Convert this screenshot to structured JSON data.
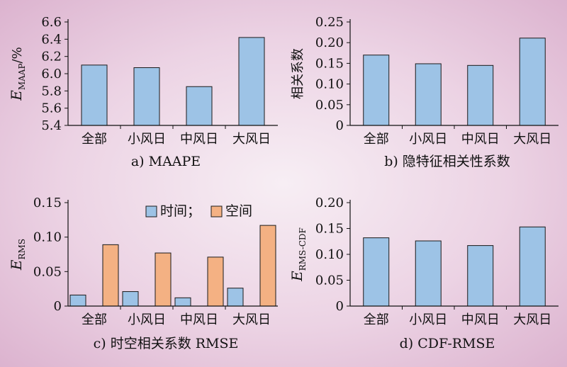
{
  "chart_data": [
    {
      "id": "a",
      "type": "bar",
      "caption": "a) MAAPE",
      "ylabel": {
        "symbol": "E",
        "sub": "MAAP",
        "suffix": "/%"
      },
      "categories": [
        "全部",
        "小风日",
        "中风日",
        "大风日"
      ],
      "ylim": [
        5.4,
        6.6
      ],
      "yticks": [
        "5.4",
        "5.6",
        "5.8",
        "6.0",
        "6.2",
        "6.4",
        "6.6"
      ],
      "series": [
        {
          "values": [
            6.1,
            6.07,
            5.85,
            6.42
          ],
          "color": "#9dc3e6"
        }
      ]
    },
    {
      "id": "b",
      "type": "bar",
      "caption": "b) 隐特征相关性系数",
      "ylabel": {
        "text": "相关系数"
      },
      "categories": [
        "全部",
        "小风日",
        "中风日",
        "大风日"
      ],
      "ylim": [
        0,
        0.25
      ],
      "yticks": [
        "0",
        "0.05",
        "0.10",
        "0.15",
        "0.20",
        "0.25"
      ],
      "series": [
        {
          "values": [
            0.17,
            0.149,
            0.145,
            0.211
          ],
          "color": "#9dc3e6"
        }
      ]
    },
    {
      "id": "c",
      "type": "bar",
      "caption": "c) 时空相关系数 RMSE",
      "ylabel": {
        "symbol": "E",
        "sub": "RMS",
        "suffix": ""
      },
      "categories": [
        "全部",
        "小风日",
        "中风日",
        "大风日"
      ],
      "ylim": [
        0,
        0.15
      ],
      "yticks": [
        "0",
        "0.05",
        "0.10",
        "0.15"
      ],
      "legend": {
        "position": "top-right",
        "separator": "；"
      },
      "series": [
        {
          "name": "时间",
          "values": [
            0.016,
            0.021,
            0.012,
            0.026
          ],
          "color": "#9dc3e6"
        },
        {
          "name": "空间",
          "values": [
            0.089,
            0.077,
            0.071,
            0.117
          ],
          "color": "#f4b183"
        }
      ]
    },
    {
      "id": "d",
      "type": "bar",
      "caption": "d) CDF-RMSE",
      "ylabel": {
        "symbol": "E",
        "sub": "RMS-CDF",
        "suffix": ""
      },
      "categories": [
        "全部",
        "小风日",
        "中风日",
        "大风日"
      ],
      "ylim": [
        0,
        0.2
      ],
      "yticks": [
        "0",
        "0.05",
        "0.10",
        "0.15",
        "0.20"
      ],
      "series": [
        {
          "values": [
            0.132,
            0.126,
            0.117,
            0.153
          ],
          "color": "#9dc3e6"
        }
      ]
    }
  ]
}
